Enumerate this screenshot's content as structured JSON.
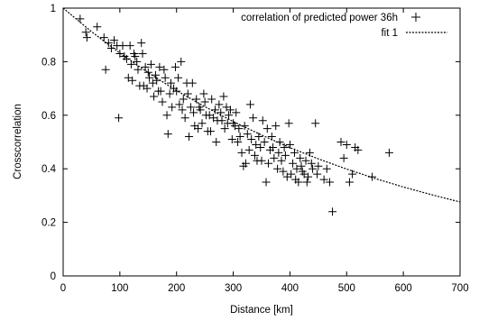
{
  "chart_data": {
    "type": "scatter",
    "title": "",
    "xlabel": "Distance [km]",
    "ylabel": "Crosscorrelation",
    "xlim": [
      0,
      700
    ],
    "ylim": [
      0,
      1
    ],
    "xticks": [
      0,
      100,
      200,
      300,
      400,
      500,
      600,
      700
    ],
    "yticks": [
      0,
      0.2,
      0.4,
      0.6,
      0.8,
      1
    ],
    "ytick_labels": [
      "0",
      "0.2",
      "0.4",
      "0.6",
      "0.8",
      "1"
    ],
    "grid": false,
    "legend_position": "top-right",
    "series": [
      {
        "name": "correlation of predicted power 36h",
        "marker": "plus",
        "points": [
          [
            30,
            0.96
          ],
          [
            40,
            0.91
          ],
          [
            42,
            0.89
          ],
          [
            60,
            0.93
          ],
          [
            72,
            0.89
          ],
          [
            75,
            0.77
          ],
          [
            80,
            0.87
          ],
          [
            85,
            0.85
          ],
          [
            90,
            0.88
          ],
          [
            95,
            0.86
          ],
          [
            98,
            0.59
          ],
          [
            100,
            0.83
          ],
          [
            105,
            0.86
          ],
          [
            108,
            0.82
          ],
          [
            112,
            0.81
          ],
          [
            115,
            0.74
          ],
          [
            118,
            0.86
          ],
          [
            120,
            0.79
          ],
          [
            122,
            0.73
          ],
          [
            125,
            0.83
          ],
          [
            127,
            0.82
          ],
          [
            130,
            0.8
          ],
          [
            132,
            0.77
          ],
          [
            135,
            0.71
          ],
          [
            138,
            0.87
          ],
          [
            140,
            0.83
          ],
          [
            142,
            0.71
          ],
          [
            145,
            0.78
          ],
          [
            148,
            0.7
          ],
          [
            150,
            0.76
          ],
          [
            152,
            0.74
          ],
          [
            155,
            0.79
          ],
          [
            158,
            0.72
          ],
          [
            160,
            0.67
          ],
          [
            163,
            0.75
          ],
          [
            165,
            0.73
          ],
          [
            168,
            0.69
          ],
          [
            170,
            0.78
          ],
          [
            172,
            0.69
          ],
          [
            175,
            0.65
          ],
          [
            178,
            0.77
          ],
          [
            180,
            0.74
          ],
          [
            183,
            0.6
          ],
          [
            185,
            0.53
          ],
          [
            188,
            0.68
          ],
          [
            190,
            0.72
          ],
          [
            192,
            0.63
          ],
          [
            195,
            0.7
          ],
          [
            198,
            0.78
          ],
          [
            200,
            0.69
          ],
          [
            203,
            0.74
          ],
          [
            205,
            0.64
          ],
          [
            208,
            0.8
          ],
          [
            210,
            0.62
          ],
          [
            212,
            0.66
          ],
          [
            215,
            0.59
          ],
          [
            218,
            0.72
          ],
          [
            220,
            0.68
          ],
          [
            222,
            0.52
          ],
          [
            225,
            0.63
          ],
          [
            228,
            0.72
          ],
          [
            230,
            0.61
          ],
          [
            232,
            0.56
          ],
          [
            235,
            0.66
          ],
          [
            238,
            0.55
          ],
          [
            240,
            0.63
          ],
          [
            242,
            0.62
          ],
          [
            245,
            0.57
          ],
          [
            248,
            0.68
          ],
          [
            250,
            0.65
          ],
          [
            252,
            0.6
          ],
          [
            255,
            0.54
          ],
          [
            258,
            0.6
          ],
          [
            260,
            0.54
          ],
          [
            262,
            0.66
          ],
          [
            265,
            0.59
          ],
          [
            268,
            0.62
          ],
          [
            270,
            0.5
          ],
          [
            272,
            0.58
          ],
          [
            275,
            0.64
          ],
          [
            278,
            0.61
          ],
          [
            280,
            0.58
          ],
          [
            283,
            0.67
          ],
          [
            285,
            0.55
          ],
          [
            288,
            0.63
          ],
          [
            290,
            0.57
          ],
          [
            292,
            0.6
          ],
          [
            295,
            0.62
          ],
          [
            298,
            0.51
          ],
          [
            300,
            0.57
          ],
          [
            303,
            0.56
          ],
          [
            305,
            0.61
          ],
          [
            308,
            0.5
          ],
          [
            310,
            0.55
          ],
          [
            312,
            0.52
          ],
          [
            315,
            0.46
          ],
          [
            318,
            0.41
          ],
          [
            320,
            0.56
          ],
          [
            322,
            0.42
          ],
          [
            325,
            0.53
          ],
          [
            328,
            0.47
          ],
          [
            330,
            0.64
          ],
          [
            332,
            0.51
          ],
          [
            335,
            0.59
          ],
          [
            338,
            0.45
          ],
          [
            340,
            0.49
          ],
          [
            342,
            0.43
          ],
          [
            345,
            0.52
          ],
          [
            348,
            0.48
          ],
          [
            350,
            0.43
          ],
          [
            352,
            0.58
          ],
          [
            355,
            0.5
          ],
          [
            358,
            0.35
          ],
          [
            360,
            0.55
          ],
          [
            362,
            0.42
          ],
          [
            365,
            0.47
          ],
          [
            368,
            0.52
          ],
          [
            370,
            0.48
          ],
          [
            372,
            0.44
          ],
          [
            375,
            0.56
          ],
          [
            378,
            0.4
          ],
          [
            380,
            0.46
          ],
          [
            382,
            0.5
          ],
          [
            385,
            0.43
          ],
          [
            388,
            0.39
          ],
          [
            390,
            0.48
          ],
          [
            392,
            0.45
          ],
          [
            395,
            0.37
          ],
          [
            398,
            0.57
          ],
          [
            400,
            0.49
          ],
          [
            402,
            0.38
          ],
          [
            405,
            0.42
          ],
          [
            408,
            0.46
          ],
          [
            410,
            0.36
          ],
          [
            412,
            0.4
          ],
          [
            415,
            0.35
          ],
          [
            418,
            0.44
          ],
          [
            420,
            0.41
          ],
          [
            422,
            0.39
          ],
          [
            425,
            0.38
          ],
          [
            428,
            0.43
          ],
          [
            430,
            0.35
          ],
          [
            432,
            0.37
          ],
          [
            435,
            0.46
          ],
          [
            438,
            0.42
          ],
          [
            440,
            0.4
          ],
          [
            445,
            0.57
          ],
          [
            448,
            0.38
          ],
          [
            450,
            0.41
          ],
          [
            460,
            0.36
          ],
          [
            465,
            0.4
          ],
          [
            470,
            0.35
          ],
          [
            475,
            0.24
          ],
          [
            490,
            0.5
          ],
          [
            495,
            0.44
          ],
          [
            500,
            0.49
          ],
          [
            505,
            0.35
          ],
          [
            510,
            0.38
          ],
          [
            515,
            0.48
          ],
          [
            520,
            0.47
          ],
          [
            545,
            0.37
          ],
          [
            575,
            0.46
          ]
        ]
      },
      {
        "name": "fit 1",
        "style": "dotted-line",
        "function_samples": [
          [
            0,
            1.0
          ],
          [
            50,
            0.912
          ],
          [
            100,
            0.832
          ],
          [
            150,
            0.759
          ],
          [
            200,
            0.692
          ],
          [
            250,
            0.632
          ],
          [
            300,
            0.576
          ],
          [
            350,
            0.526
          ],
          [
            400,
            0.479
          ],
          [
            450,
            0.437
          ],
          [
            500,
            0.399
          ],
          [
            550,
            0.364
          ],
          [
            600,
            0.332
          ],
          [
            650,
            0.303
          ],
          [
            700,
            0.276
          ]
        ]
      }
    ]
  }
}
